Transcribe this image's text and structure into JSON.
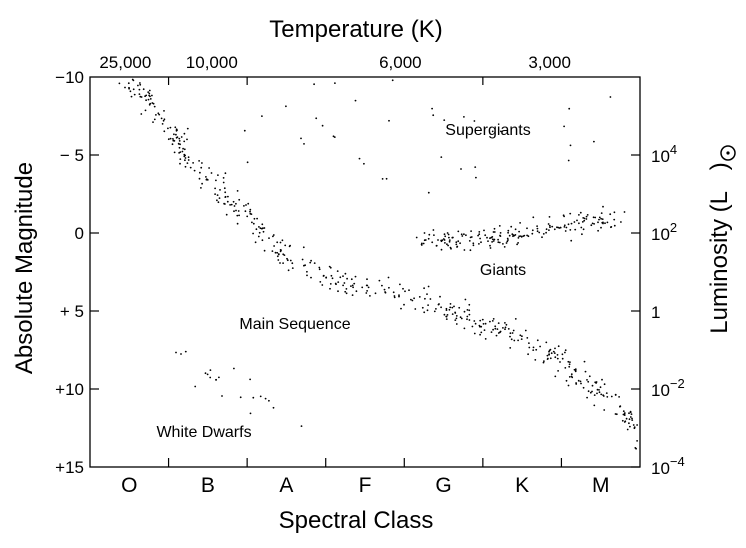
{
  "chart_data": {
    "type": "scatter",
    "title": "",
    "xlabel": "Spectral Class",
    "ylabel": "Absolute Magnitude",
    "top_label": "Temperature (K)",
    "right_label_text": "Luminosity (L",
    "right_label_close": ")",
    "spectral_classes": [
      "O",
      "B",
      "A",
      "F",
      "G",
      "K",
      "M"
    ],
    "temperature_ticks": [
      "25,000",
      "10,000",
      "6,000",
      "3,000"
    ],
    "magnitude_ticks": [
      "−10",
      "− 5",
      "0",
      "+ 5",
      "+10",
      "+15"
    ],
    "magnitude_values": [
      -10,
      -5,
      0,
      5,
      10,
      15
    ],
    "ylim": [
      -10,
      15
    ],
    "luminosity_ticks": [
      {
        "base": "10",
        "exp": "4",
        "magnitude": -5
      },
      {
        "base": "10",
        "exp": "2",
        "magnitude": 0
      },
      {
        "base": "1",
        "exp": "",
        "magnitude": 5
      },
      {
        "base": "10",
        "exp": "−2",
        "magnitude": 10
      },
      {
        "base": "10",
        "exp": "−4",
        "magnitude": 15
      }
    ],
    "annotations": [
      "Supergiants",
      "Giants",
      "Main Sequence",
      "White Dwarfs"
    ],
    "grid": false,
    "legend": "none",
    "regions": [
      {
        "name": "main-sequence",
        "path": [
          [
            0.0,
            -10
          ],
          [
            0.6,
            -6
          ],
          [
            0.75,
            -4.5
          ],
          [
            1.0,
            -3.5
          ],
          [
            1.3,
            -2
          ],
          [
            1.6,
            -0.5
          ],
          [
            2.0,
            1.5
          ],
          [
            2.4,
            2.5
          ],
          [
            3.0,
            3.5
          ],
          [
            3.5,
            4.2
          ],
          [
            4.0,
            4.8
          ],
          [
            4.5,
            5.8
          ],
          [
            5.0,
            6.8
          ],
          [
            5.5,
            8.2
          ],
          [
            5.8,
            9.5
          ],
          [
            6.2,
            11
          ],
          [
            6.5,
            12.5
          ],
          [
            6.6,
            14
          ]
        ],
        "count": 520,
        "spread": 0.55
      },
      {
        "name": "giants",
        "path": [
          [
            3.7,
            0.3
          ],
          [
            4.3,
            0.5
          ],
          [
            4.8,
            0.2
          ],
          [
            5.3,
            -0.3
          ],
          [
            5.8,
            -0.7
          ],
          [
            6.2,
            -0.8
          ]
        ],
        "count": 190,
        "spread": 0.45
      },
      {
        "name": "supergiants",
        "path": [
          [
            1.5,
            -8
          ],
          [
            3.5,
            -5.5
          ],
          [
            5.0,
            -6.5
          ],
          [
            6.3,
            -8
          ]
        ],
        "count": 40,
        "spread": 2.2
      },
      {
        "name": "white-dwarfs",
        "path": [
          [
            0.4,
            8
          ],
          [
            1.0,
            9.5
          ],
          [
            1.5,
            10.5
          ],
          [
            2.2,
            12
          ]
        ],
        "count": 22,
        "spread": 0.9
      }
    ]
  }
}
